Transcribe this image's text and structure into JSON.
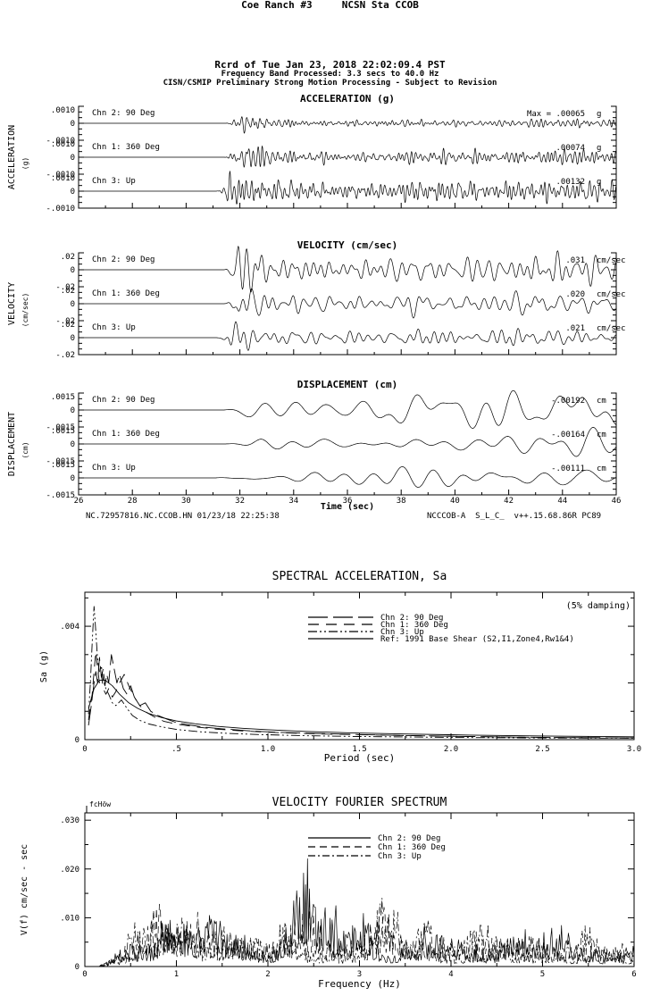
{
  "header": {
    "line1": "Coe Ranch #3     NCSN Sta CCOB",
    "line2": "Rcrd of Tue Jan 23, 2018 22:02:09.4 PST",
    "line3": "Frequency Band Processed: 3.3 secs to 40.0 Hz",
    "line4": "CISN/CSMIP Preliminary Strong Motion Processing - Subject to Revision"
  },
  "footer": {
    "left": "NC.72957816.NC.CCOB.HN 01/23/18 22:25:38",
    "right": "NCCCOB-A  S_L_C_  v++.15.68.86R PC89"
  },
  "chart_data": [
    {
      "type": "line",
      "kind": "timeseries",
      "xlabel": "Time (sec)",
      "xlim": [
        26,
        46
      ],
      "x_ticks": [
        "26",
        "28",
        "30",
        "32",
        "34",
        "36",
        "38",
        "40",
        "42",
        "44",
        "46"
      ],
      "signal_onset_sec": 31.4,
      "grid": false,
      "groups": [
        {
          "title": "ACCELERATION (g)",
          "side_label": "ACCELERATION",
          "side_unit": "(g)",
          "scale_labels": [
            ".0010",
            "0",
            "-.0010"
          ],
          "full_scale": 0.001,
          "channels": [
            {
              "label": "Chn 2: 90 Deg",
              "peak": 0.00065,
              "peak_label": "Max =  .00065",
              "unit": "g"
            },
            {
              "label": "Chn 1: 360 Deg",
              "peak": 0.00074,
              "peak_label": ".00074",
              "unit": "g"
            },
            {
              "label": "Chn 3: Up",
              "peak": 0.00132,
              "peak_label": ".00132",
              "unit": "g"
            }
          ]
        },
        {
          "title": "VELOCITY (cm/sec)",
          "side_label": "VELOCITY",
          "side_unit": "(cm/sec)",
          "scale_labels": [
            ".02",
            "0",
            "-.02"
          ],
          "full_scale": 0.02,
          "channels": [
            {
              "label": "Chn 2: 90 Deg",
              "peak": 0.031,
              "peak_label": ".031",
              "unit": "cm/sec"
            },
            {
              "label": "Chn 1: 360 Deg",
              "peak": 0.02,
              "peak_label": ".020",
              "unit": "cm/sec"
            },
            {
              "label": "Chn 3: Up",
              "peak": 0.021,
              "peak_label": ".021",
              "unit": "cm/sec"
            }
          ]
        },
        {
          "title": "DISPLACEMENT (cm)",
          "side_label": "DISPLACEMENT",
          "side_unit": "(cm)",
          "scale_labels": [
            ".0015",
            "0",
            "-.0015"
          ],
          "full_scale": 0.0015,
          "channels": [
            {
              "label": "Chn 2: 90 Deg",
              "peak": 0.00192,
              "peak_label": "-.00192",
              "unit": "cm"
            },
            {
              "label": "Chn 1: 360 Deg",
              "peak": 0.00164,
              "peak_label": "-.00164",
              "unit": "cm"
            },
            {
              "label": "Chn 3: Up",
              "peak": 0.00111,
              "peak_label": "-.00111",
              "unit": "cm"
            }
          ]
        }
      ]
    },
    {
      "type": "line",
      "kind": "spectrum",
      "title": "SPECTRAL ACCELERATION, Sa",
      "note": "(5% damping)",
      "xlabel": "Period (sec)",
      "ylabel": "Sa (g)",
      "xlim": [
        0,
        3
      ],
      "ylim": [
        0,
        0.0052
      ],
      "x_ticks": [
        {
          "v": 0,
          "label": "0"
        },
        {
          "v": 0.5,
          "label": ".5"
        },
        {
          "v": 1,
          "label": "1.0"
        },
        {
          "v": 1.5,
          "label": "1.5"
        },
        {
          "v": 2,
          "label": "2.0"
        },
        {
          "v": 2.5,
          "label": "2.5"
        },
        {
          "v": 3,
          "label": "3.0"
        }
      ],
      "y_ticks": [
        {
          "v": 0,
          "label": "0"
        },
        {
          "v": 0.004,
          "label": ".004"
        }
      ],
      "legend_position": "top-center-inside",
      "series": [
        {
          "name": "Chn 2: 90 Deg",
          "dash": "22 6",
          "points": [
            [
              0.02,
              0.0005
            ],
            [
              0.035,
              0.0012
            ],
            [
              0.05,
              0.002
            ],
            [
              0.06,
              0.0024
            ],
            [
              0.07,
              0.002
            ],
            [
              0.08,
              0.0029
            ],
            [
              0.09,
              0.0022
            ],
            [
              0.1,
              0.0025
            ],
            [
              0.11,
              0.0019
            ],
            [
              0.12,
              0.0023
            ],
            [
              0.13,
              0.002
            ],
            [
              0.145,
              0.003
            ],
            [
              0.16,
              0.0025
            ],
            [
              0.175,
              0.002
            ],
            [
              0.19,
              0.0023
            ],
            [
              0.21,
              0.0018
            ],
            [
              0.23,
              0.0016
            ],
            [
              0.25,
              0.0019
            ],
            [
              0.27,
              0.0015
            ],
            [
              0.3,
              0.0012
            ],
            [
              0.33,
              0.0013
            ],
            [
              0.36,
              0.001
            ],
            [
              0.4,
              0.00085
            ],
            [
              0.45,
              0.00072
            ],
            [
              0.5,
              0.0006
            ],
            [
              0.57,
              0.00052
            ],
            [
              0.65,
              0.00044
            ],
            [
              0.75,
              0.00038
            ],
            [
              0.9,
              0.00031
            ],
            [
              1.05,
              0.00026
            ],
            [
              1.25,
              0.00022
            ],
            [
              1.5,
              0.00018
            ],
            [
              1.8,
              0.00014
            ],
            [
              2.1,
              0.00011
            ],
            [
              2.5,
              8e-05
            ],
            [
              3.0,
              6e-05
            ]
          ]
        },
        {
          "name": "Chn 1: 360 Deg",
          "dash": "12 8",
          "points": [
            [
              0.02,
              0.0007
            ],
            [
              0.04,
              0.0016
            ],
            [
              0.05,
              0.0024
            ],
            [
              0.06,
              0.0031
            ],
            [
              0.07,
              0.0025
            ],
            [
              0.08,
              0.002
            ],
            [
              0.09,
              0.0023
            ],
            [
              0.1,
              0.0018
            ],
            [
              0.115,
              0.0016
            ],
            [
              0.13,
              0.0018
            ],
            [
              0.15,
              0.0015
            ],
            [
              0.17,
              0.0017
            ],
            [
              0.19,
              0.002
            ],
            [
              0.215,
              0.0023
            ],
            [
              0.24,
              0.0019
            ],
            [
              0.27,
              0.0015
            ],
            [
              0.3,
              0.0012
            ],
            [
              0.34,
              0.00095
            ],
            [
              0.38,
              0.0008
            ],
            [
              0.43,
              0.00065
            ],
            [
              0.5,
              0.00055
            ],
            [
              0.6,
              0.00045
            ],
            [
              0.72,
              0.00037
            ],
            [
              0.88,
              0.0003
            ],
            [
              1.05,
              0.00025
            ],
            [
              1.3,
              0.0002
            ],
            [
              1.6,
              0.00016
            ],
            [
              2.0,
              0.00012
            ],
            [
              2.5,
              8e-05
            ],
            [
              3.0,
              6e-05
            ]
          ]
        },
        {
          "name": "Chn 3: Up",
          "dash": "10 3 2 3 2 3",
          "points": [
            [
              0.02,
              0.0009
            ],
            [
              0.03,
              0.002
            ],
            [
              0.04,
              0.0034
            ],
            [
              0.05,
              0.0047
            ],
            [
              0.06,
              0.0038
            ],
            [
              0.07,
              0.0028
            ],
            [
              0.08,
              0.0024
            ],
            [
              0.09,
              0.0026
            ],
            [
              0.1,
              0.0021
            ],
            [
              0.115,
              0.0018
            ],
            [
              0.13,
              0.0016
            ],
            [
              0.15,
              0.0013
            ],
            [
              0.17,
              0.0012
            ],
            [
              0.2,
              0.0014
            ],
            [
              0.23,
              0.0011
            ],
            [
              0.26,
              0.00085
            ],
            [
              0.3,
              0.00068
            ],
            [
              0.35,
              0.00055
            ],
            [
              0.42,
              0.00045
            ],
            [
              0.5,
              0.00036
            ],
            [
              0.62,
              0.00028
            ],
            [
              0.78,
              0.00022
            ],
            [
              0.95,
              0.00018
            ],
            [
              1.2,
              0.00014
            ],
            [
              1.5,
              0.00011
            ],
            [
              2.0,
              8e-05
            ],
            [
              2.5,
              6e-05
            ],
            [
              3.0,
              5e-05
            ]
          ]
        },
        {
          "name": "Ref: 1991 Base Shear (S2,I1,Zone4,Rw1&4)",
          "dash": "",
          "points": [
            [
              0.02,
              0.0011
            ],
            [
              0.05,
              0.0018
            ],
            [
              0.08,
              0.0021
            ],
            [
              0.11,
              0.0021
            ],
            [
              0.15,
              0.0019
            ],
            [
              0.19,
              0.0016
            ],
            [
              0.24,
              0.0013
            ],
            [
              0.29,
              0.0011
            ],
            [
              0.35,
              0.00092
            ],
            [
              0.42,
              0.00078
            ],
            [
              0.5,
              0.00066
            ],
            [
              0.6,
              0.00056
            ],
            [
              0.72,
              0.00047
            ],
            [
              0.86,
              0.0004
            ],
            [
              1.0,
              0.00035
            ],
            [
              1.2,
              0.00029
            ],
            [
              1.45,
              0.00024
            ],
            [
              1.75,
              0.0002
            ],
            [
              2.1,
              0.00016
            ],
            [
              2.5,
              0.00013
            ],
            [
              3.0,
              0.0001
            ]
          ]
        }
      ]
    },
    {
      "type": "line",
      "kind": "fourier",
      "title": "VELOCITY FOURIER SPECTRUM",
      "corner_label": "fcHöw",
      "xlabel": "Frequency (Hz)",
      "ylabel": "V(f)   cm/sec - sec",
      "xlim": [
        0,
        6
      ],
      "ylim": [
        0,
        0.0315
      ],
      "x_ticks": [
        {
          "v": 0,
          "label": "0"
        },
        {
          "v": 1,
          "label": "1"
        },
        {
          "v": 2,
          "label": "2"
        },
        {
          "v": 3,
          "label": "3"
        },
        {
          "v": 4,
          "label": "4"
        },
        {
          "v": 5,
          "label": "5"
        },
        {
          "v": 6,
          "label": "6"
        }
      ],
      "y_ticks": [
        {
          "v": 0,
          "label": "0"
        },
        {
          "v": 0.01,
          "label": ".010"
        },
        {
          "v": 0.02,
          "label": ".020"
        },
        {
          "v": 0.03,
          "label": ".030"
        }
      ],
      "series": [
        {
          "name": "Chn 2: 90 Deg",
          "dash": "",
          "base": 0.0055,
          "spectral_peaks": [
            [
              0.95,
              0.011
            ],
            [
              1.35,
              0.005
            ],
            [
              2.35,
              0.016
            ],
            [
              2.62,
              0.006
            ],
            [
              3.05,
              0.005
            ],
            [
              4.75,
              0.004
            ],
            [
              5.2,
              0.004
            ]
          ]
        },
        {
          "name": "Chn 1: 360 Deg",
          "dash": "8 5",
          "base": 0.005,
          "spectral_peaks": [
            [
              0.8,
              0.009
            ],
            [
              1.2,
              0.007
            ],
            [
              1.65,
              0.005
            ],
            [
              2.45,
              0.008
            ],
            [
              3.25,
              0.006
            ],
            [
              5.0,
              0.004
            ]
          ]
        },
        {
          "name": "Chn 3: Up",
          "dash": "8 3 2 3",
          "base": 0.005,
          "spectral_peaks": [
            [
              0.55,
              0.006
            ],
            [
              1.0,
              0.008
            ],
            [
              1.45,
              0.006
            ],
            [
              2.2,
              0.005
            ],
            [
              3.3,
              0.01
            ],
            [
              3.75,
              0.007
            ],
            [
              4.4,
              0.005
            ],
            [
              5.5,
              0.004
            ]
          ]
        }
      ]
    }
  ]
}
